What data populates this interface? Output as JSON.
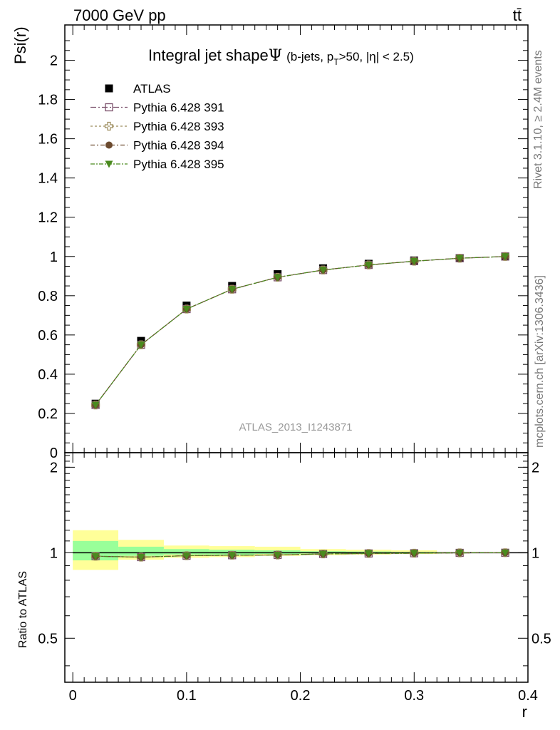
{
  "header": {
    "left_title": "7000 GeV pp",
    "right_title": "tt̄"
  },
  "side_labels": {
    "rivet": "Rivet 3.1.10, ≥ 2.4M events",
    "mcplots": "mcplots.cern.ch [arXiv:1306.3436]"
  },
  "chart_data": [
    {
      "type": "line",
      "panel": "main",
      "title": "Integral jet shape",
      "title_symbol": "Ψ",
      "title_selection": {
        "prefix": "(b-jets, p",
        "sub": "T",
        "suffix": ">50, |η| < 2.5)"
      },
      "ylabel": "Psi(r)",
      "xlim": [
        -0.007,
        0.4
      ],
      "ylim": [
        0,
        2.18
      ],
      "yticks": [
        0,
        0.2,
        0.4,
        0.6,
        0.8,
        1,
        1.2,
        1.4,
        1.6,
        1.8,
        2
      ],
      "ytick_labels": [
        "0",
        "0.2",
        "0.4",
        "0.6",
        "0.8",
        "1",
        "1.2",
        "1.4",
        "1.6",
        "1.8",
        "2"
      ],
      "watermark": "ATLAS_2013_I1243871",
      "legend_position": "top-left",
      "x": [
        0.02,
        0.06,
        0.1,
        0.14,
        0.18,
        0.22,
        0.26,
        0.3,
        0.34,
        0.38
      ],
      "series": [
        {
          "name": "ATLAS",
          "marker": "square-filled",
          "color": "#000000",
          "values": [
            0.25,
            0.57,
            0.75,
            0.85,
            0.91,
            0.94,
            0.963,
            0.98,
            0.992,
            1.0
          ]
        },
        {
          "name": "Pythia 6.428 391",
          "marker": "square-open",
          "color": "#7a4f6a",
          "values": [
            0.243,
            0.55,
            0.732,
            0.833,
            0.894,
            0.931,
            0.957,
            0.976,
            0.991,
            1.0
          ]
        },
        {
          "name": "Pythia 6.428 393",
          "marker": "cross-open",
          "color": "#9b8a5a",
          "values": [
            0.243,
            0.55,
            0.732,
            0.833,
            0.894,
            0.931,
            0.957,
            0.976,
            0.991,
            1.0
          ]
        },
        {
          "name": "Pythia 6.428 394",
          "marker": "circle-filled",
          "color": "#6b4a2e",
          "values": [
            0.243,
            0.55,
            0.732,
            0.833,
            0.894,
            0.931,
            0.957,
            0.976,
            0.991,
            1.0
          ]
        },
        {
          "name": "Pythia 6.428 395",
          "marker": "triangle-down-filled",
          "color": "#4a8a1e",
          "values": [
            0.243,
            0.55,
            0.732,
            0.833,
            0.894,
            0.931,
            0.957,
            0.976,
            0.991,
            1.0
          ]
        }
      ]
    },
    {
      "type": "line",
      "panel": "ratio",
      "ylabel": "Ratio to ATLAS",
      "xlabel": "r",
      "xlim": [
        -0.007,
        0.4
      ],
      "ylim": [
        0.35,
        2.25
      ],
      "log_scale_y": true,
      "yticks": [
        0.5,
        1,
        2
      ],
      "ytick_labels": [
        "0.5",
        "1",
        "2"
      ],
      "xticks": [
        0,
        0.1,
        0.2,
        0.3,
        0.4
      ],
      "xtick_labels": [
        "0",
        "0.1",
        "0.2",
        "0.3",
        "0.4"
      ],
      "bands": [
        {
          "x0": 0.0,
          "x1": 0.04,
          "stat": [
            0.94,
            1.1
          ],
          "total": [
            0.87,
            1.2
          ]
        },
        {
          "x0": 0.04,
          "x1": 0.08,
          "stat": [
            0.975,
            1.05
          ],
          "total": [
            0.945,
            1.11
          ]
        },
        {
          "x0": 0.08,
          "x1": 0.12,
          "stat": [
            0.985,
            1.03
          ],
          "total": [
            0.96,
            1.06
          ]
        },
        {
          "x0": 0.12,
          "x1": 0.16,
          "stat": [
            0.985,
            1.025
          ],
          "total": [
            0.965,
            1.055
          ]
        },
        {
          "x0": 0.16,
          "x1": 0.2,
          "stat": [
            0.99,
            1.02
          ],
          "total": [
            0.975,
            1.05
          ]
        },
        {
          "x0": 0.2,
          "x1": 0.24,
          "stat": [
            0.993,
            1.012
          ],
          "total": [
            0.98,
            1.03
          ]
        },
        {
          "x0": 0.24,
          "x1": 0.28,
          "stat": [
            0.995,
            1.01
          ],
          "total": [
            0.985,
            1.025
          ]
        },
        {
          "x0": 0.28,
          "x1": 0.32,
          "stat": [
            0.997,
            1.007
          ],
          "total": [
            0.99,
            1.02
          ]
        },
        {
          "x0": 0.32,
          "x1": 0.36,
          "stat": [
            0.999,
            1.003
          ],
          "total": [
            0.996,
            1.005
          ]
        },
        {
          "x0": 0.36,
          "x1": 0.4,
          "stat": [
            1.0,
            1.0
          ],
          "total": [
            1.0,
            1.0
          ]
        }
      ],
      "x": [
        0.02,
        0.06,
        0.1,
        0.14,
        0.18,
        0.22,
        0.26,
        0.3,
        0.34,
        0.38
      ],
      "series": [
        {
          "name": "Pythia 6.428 391",
          "values": [
            0.972,
            0.965,
            0.976,
            0.98,
            0.982,
            0.99,
            0.994,
            0.996,
            0.999,
            1.0
          ]
        },
        {
          "name": "Pythia 6.428 393",
          "values": [
            0.972,
            0.965,
            0.976,
            0.98,
            0.982,
            0.99,
            0.994,
            0.996,
            0.999,
            1.0
          ]
        },
        {
          "name": "Pythia 6.428 394",
          "values": [
            0.972,
            0.965,
            0.976,
            0.98,
            0.982,
            0.99,
            0.994,
            0.996,
            0.999,
            1.0
          ]
        },
        {
          "name": "Pythia 6.428 395",
          "values": [
            0.972,
            0.965,
            0.976,
            0.98,
            0.982,
            0.99,
            0.994,
            0.996,
            0.999,
            1.0
          ]
        }
      ]
    }
  ],
  "colors": {
    "stat_band": "#99ff99",
    "total_band": "#ffff99",
    "frame": "#000000",
    "watermark": "#999999",
    "side_text": "#777777"
  }
}
